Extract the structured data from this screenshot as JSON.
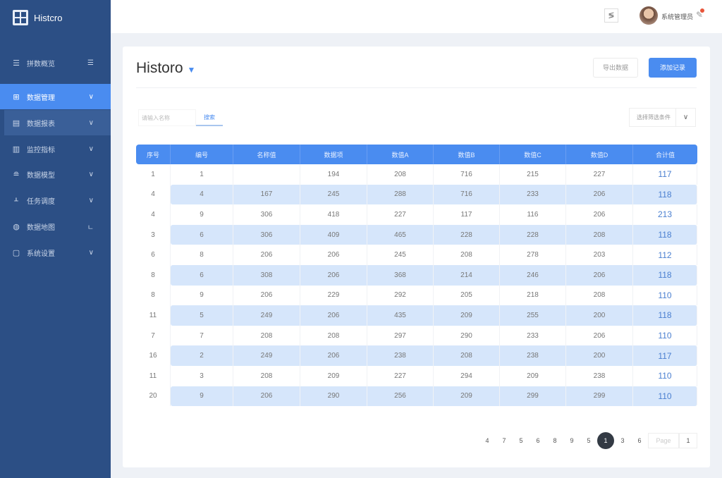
{
  "app": {
    "name": "Histcro"
  },
  "sidebar": {
    "items": [
      {
        "label": "拼数概览",
        "icon": "menu-icon"
      },
      {
        "label": "数据管理",
        "icon": "grid-icon"
      },
      {
        "label": "数据报表",
        "icon": "calendar-icon"
      },
      {
        "label": "监控指标",
        "icon": "chart-icon"
      },
      {
        "label": "数据模型",
        "icon": "layers-icon"
      },
      {
        "label": "任务调度",
        "icon": "tree-icon"
      },
      {
        "label": "数据地图",
        "icon": "globe-icon"
      },
      {
        "label": "系统设置",
        "icon": "box-icon"
      }
    ]
  },
  "topbar": {
    "username": "系统管理员"
  },
  "page": {
    "title": "Historo",
    "secondary_button": "导出数据",
    "primary_button": "添加记录",
    "search_placeholder": "请输入名称",
    "search_button": "搜索",
    "select_value": "选择筛选条件"
  },
  "table": {
    "headers": [
      "序号",
      "编号",
      "名称值",
      "数据项",
      "数值A",
      "数值B",
      "数值C",
      "数值D",
      "合计值"
    ],
    "rows": [
      [
        "1",
        "1",
        "",
        "194",
        "208",
        "716",
        "215",
        "227",
        "117"
      ],
      [
        "4",
        "4",
        "167",
        "245",
        "288",
        "716",
        "233",
        "206",
        "118"
      ],
      [
        "4",
        "9",
        "306",
        "418",
        "227",
        "117",
        "116",
        "206",
        "213"
      ],
      [
        "3",
        "6",
        "306",
        "409",
        "465",
        "228",
        "228",
        "208",
        "118"
      ],
      [
        "6",
        "8",
        "206",
        "206",
        "245",
        "208",
        "278",
        "203",
        "112"
      ],
      [
        "8",
        "6",
        "308",
        "206",
        "368",
        "214",
        "246",
        "206",
        "118"
      ],
      [
        "8",
        "9",
        "206",
        "229",
        "292",
        "205",
        "218",
        "208",
        "110"
      ],
      [
        "11",
        "5",
        "249",
        "206",
        "435",
        "209",
        "255",
        "200",
        "118"
      ],
      [
        "7",
        "7",
        "208",
        "208",
        "297",
        "290",
        "233",
        "206",
        "110"
      ],
      [
        "16",
        "2",
        "249",
        "206",
        "238",
        "208",
        "238",
        "200",
        "117"
      ],
      [
        "11",
        "3",
        "208",
        "209",
        "227",
        "294",
        "209",
        "238",
        "110"
      ],
      [
        "20",
        "9",
        "206",
        "290",
        "256",
        "209",
        "299",
        "299",
        "110"
      ]
    ]
  },
  "pagination": {
    "items": [
      "4",
      "7",
      "5",
      "6",
      "8",
      "9",
      "5"
    ],
    "current": "1",
    "after": [
      "3",
      "6"
    ],
    "jump_placeholder": "Page",
    "go": "1"
  },
  "colors": {
    "sidebar": "#2c4f85",
    "accent": "#4a8cf0",
    "row_highlight": "#d6e6fb"
  }
}
